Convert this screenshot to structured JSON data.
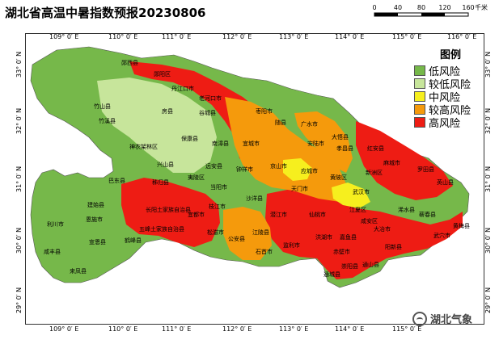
{
  "title": "湖北省高温中暑指数预报20230806",
  "scale": {
    "ticks": [
      "0",
      "40",
      "80",
      "120",
      "160"
    ],
    "unit": "千米"
  },
  "axes": {
    "lon_labels": [
      "109° 0′ E",
      "110° 0′ E",
      "111° 0′ E",
      "112° 0′ E",
      "113° 0′ E",
      "114° 0′ E",
      "115° 0′ E",
      "116° 0′ E"
    ],
    "lat_labels": [
      "33° 0′ N",
      "32° 0′ N",
      "31° 0′ N",
      "30° 0′ N",
      "29° 0′ N"
    ]
  },
  "legend": {
    "title": "图例",
    "items": [
      {
        "label": "低风险",
        "color": "#76b84a"
      },
      {
        "label": "较低风险",
        "color": "#c7e59b"
      },
      {
        "label": "中风险",
        "color": "#f6ef1e"
      },
      {
        "label": "较高风险",
        "color": "#f59a0c"
      },
      {
        "label": "高风险",
        "color": "#ee1c14"
      }
    ]
  },
  "place_names": [
    {
      "id": "yunxi",
      "label": "郧西县"
    },
    {
      "id": "yunyang",
      "label": "郧阳区"
    },
    {
      "id": "danjiangkou",
      "label": "丹江口市"
    },
    {
      "id": "laohekou",
      "label": "老河口市"
    },
    {
      "id": "zhushan",
      "label": "竹山县"
    },
    {
      "id": "zhuxi",
      "label": "竹溪县"
    },
    {
      "id": "fangxian",
      "label": "房县"
    },
    {
      "id": "gucheng",
      "label": "谷城县"
    },
    {
      "id": "shennongjia",
      "label": "神农架林区"
    },
    {
      "id": "baokang",
      "label": "保康县"
    },
    {
      "id": "nanzhang",
      "label": "南漳县"
    },
    {
      "id": "yicheng",
      "label": "宜城市"
    },
    {
      "id": "zaoyang",
      "label": "枣阳市"
    },
    {
      "id": "suixian",
      "label": "随县"
    },
    {
      "id": "guangshui",
      "label": "广水市"
    },
    {
      "id": "dawu",
      "label": "大悟县"
    },
    {
      "id": "hongan",
      "label": "红安县"
    },
    {
      "id": "macheng",
      "label": "麻城市"
    },
    {
      "id": "xiaogan",
      "label": "孝昌县"
    },
    {
      "id": "anlu",
      "label": "安陆市"
    },
    {
      "id": "yingcheng",
      "label": "应城市"
    },
    {
      "id": "jingshan",
      "label": "京山市"
    },
    {
      "id": "zhongxiang",
      "label": "钟祥市"
    },
    {
      "id": "yuanan",
      "label": "远安县"
    },
    {
      "id": "xingshan",
      "label": "兴山县"
    },
    {
      "id": "badong",
      "label": "巴东县"
    },
    {
      "id": "zigui",
      "label": "秭归县"
    },
    {
      "id": "yiling",
      "label": "夷陵区"
    },
    {
      "id": "dangyang",
      "label": "当阳市"
    },
    {
      "id": "tianmen",
      "label": "天门市"
    },
    {
      "id": "qianjiang",
      "label": "潜江市"
    },
    {
      "id": "xiantao",
      "label": "仙桃市"
    },
    {
      "id": "wuhan",
      "label": "武汉市"
    },
    {
      "id": "jianli",
      "label": "监利市"
    },
    {
      "id": "shishou",
      "label": "石首市"
    },
    {
      "id": "gongan",
      "label": "公安县"
    },
    {
      "id": "songzi",
      "label": "松滋市"
    },
    {
      "id": "changyang",
      "label": "长阳土家族自治县"
    },
    {
      "id": "wufeng",
      "label": "五峰土家族自治县"
    },
    {
      "id": "jianshi",
      "label": "建始县"
    },
    {
      "id": "enshi",
      "label": "恩施市"
    },
    {
      "id": "lichuan",
      "label": "利川市"
    },
    {
      "id": "xuanen",
      "label": "宣恩县"
    },
    {
      "id": "hefeng",
      "label": "鹤峰县"
    },
    {
      "id": "xianfeng",
      "label": "咸丰县"
    },
    {
      "id": "laifeng",
      "label": "来凤县"
    },
    {
      "id": "honghu",
      "label": "洪湖市"
    },
    {
      "id": "jiayu",
      "label": "嘉鱼县"
    },
    {
      "id": "chibi",
      "label": "赤壁市"
    },
    {
      "id": "tongcheng",
      "label": "通城县"
    },
    {
      "id": "chongyang",
      "label": "崇阳县"
    },
    {
      "id": "tongshan",
      "label": "通山县"
    },
    {
      "id": "yangxin",
      "label": "阳新县"
    },
    {
      "id": "daye",
      "label": "大冶市"
    },
    {
      "id": "xishui",
      "label": "浠水县"
    },
    {
      "id": "qichun",
      "label": "蕲春县"
    },
    {
      "id": "wuxue",
      "label": "武穴市"
    },
    {
      "id": "huangmei",
      "label": "黄梅县"
    },
    {
      "id": "yingshan",
      "label": "英山县"
    },
    {
      "id": "luotian",
      "label": "罗田县"
    },
    {
      "id": "xinzhou",
      "label": "新洲区"
    },
    {
      "id": "huangpi",
      "label": "黄陂区"
    },
    {
      "id": "jiangxia",
      "label": "江夏区"
    },
    {
      "id": "xianan",
      "label": "咸安区"
    },
    {
      "id": "shayang",
      "label": "沙洋县"
    },
    {
      "id": "jiangling",
      "label": "江陵县"
    },
    {
      "id": "zhijiang",
      "label": "枝江市"
    },
    {
      "id": "yidu",
      "label": "宜都市"
    }
  ],
  "watermark": "湖北气象"
}
